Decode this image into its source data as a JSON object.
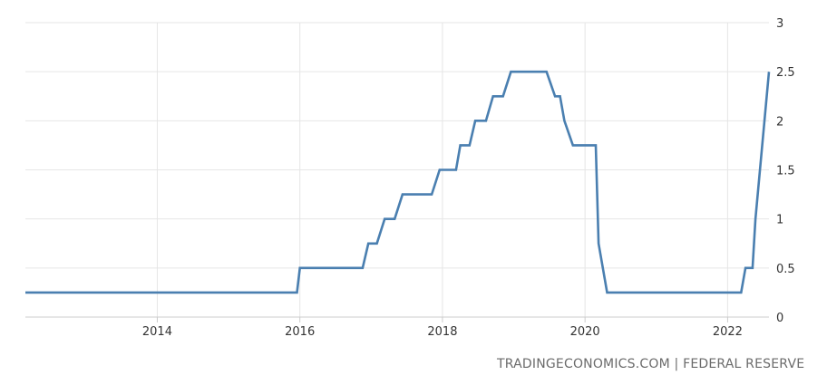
{
  "chart_data": {
    "type": "line",
    "title": "",
    "xlabel": "",
    "ylabel": "",
    "xlim": [
      2012.15,
      2022.58
    ],
    "ylim": [
      0,
      3
    ],
    "x_ticks": [
      "2014",
      "2016",
      "2018",
      "2020",
      "2022"
    ],
    "x_tick_values": [
      2014,
      2016,
      2018,
      2020,
      2022
    ],
    "y_ticks": [
      "0",
      "0.5",
      "1",
      "1.5",
      "2",
      "2.5",
      "3"
    ],
    "y_tick_values": [
      0,
      0.5,
      1,
      1.5,
      2,
      2.5,
      3
    ],
    "grid": true,
    "line_color": "#4a7fb0",
    "series": [
      {
        "x": [
          2012.15,
          2015.96,
          2016.0,
          2016.88,
          2016.96,
          2017.08,
          2017.19,
          2017.33,
          2017.44,
          2017.85,
          2017.96,
          2018.19,
          2018.25,
          2018.38,
          2018.46,
          2018.61,
          2018.71,
          2018.85,
          2018.96,
          2019.46,
          2019.58,
          2019.65,
          2019.71,
          2019.83,
          2020.15,
          2020.19,
          2020.31,
          2022.19,
          2022.25,
          2022.35,
          2022.39,
          2022.58
        ],
        "y": [
          0.25,
          0.25,
          0.5,
          0.5,
          0.75,
          0.75,
          1.0,
          1.0,
          1.25,
          1.25,
          1.5,
          1.5,
          1.75,
          1.75,
          2.0,
          2.0,
          2.25,
          2.25,
          2.5,
          2.5,
          2.25,
          2.25,
          2.0,
          1.75,
          1.75,
          0.75,
          0.25,
          0.25,
          0.5,
          0.5,
          1.0,
          2.5
        ]
      }
    ]
  },
  "source": "TRADINGECONOMICS.COM | FEDERAL RESERVE"
}
